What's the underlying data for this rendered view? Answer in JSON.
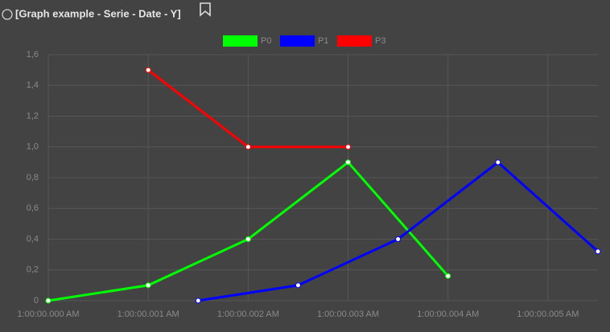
{
  "header": {
    "title": "[Graph example - Serie - Date - Y]"
  },
  "chart_data": {
    "type": "line",
    "series": [
      {
        "name": "P0",
        "color": "#00ff00",
        "x": [
          0,
          1,
          2,
          3,
          4
        ],
        "values": [
          0,
          0.1,
          0.4,
          0.9,
          0.16
        ]
      },
      {
        "name": "P1",
        "color": "#0000ff",
        "x": [
          1.5,
          2.5,
          3.5,
          4.5,
          5.5
        ],
        "values": [
          0,
          0.1,
          0.4,
          0.9,
          0.32
        ]
      },
      {
        "name": "P3",
        "color": "#ff0000",
        "x": [
          1,
          2,
          3
        ],
        "values": [
          1.5,
          1.0,
          1.0
        ]
      }
    ],
    "xlim": [
      0,
      5.5
    ],
    "xticks": [
      {
        "value": 0,
        "label": "1:00:00.000 AM"
      },
      {
        "value": 1,
        "label": "1:00:00.001 AM"
      },
      {
        "value": 2,
        "label": "1:00:00.002 AM"
      },
      {
        "value": 3,
        "label": "1:00:00.003 AM"
      },
      {
        "value": 4,
        "label": "1:00:00.004 AM"
      },
      {
        "value": 5,
        "label": "1:00:00.005 AM"
      }
    ],
    "ylim": [
      0,
      1.6
    ],
    "yticks": [
      0,
      {
        "value": 0.2,
        "label": "0,2"
      },
      {
        "value": 0.4,
        "label": "0,4"
      },
      {
        "value": 0.6,
        "label": "0,6"
      },
      {
        "value": 0.8,
        "label": "0,8"
      },
      {
        "value": 1.0,
        "label": "1,0"
      },
      {
        "value": 1.2,
        "label": "1,2"
      },
      {
        "value": 1.4,
        "label": "1,4"
      },
      {
        "value": 1.6,
        "label": "1,6"
      }
    ],
    "grid": true
  }
}
